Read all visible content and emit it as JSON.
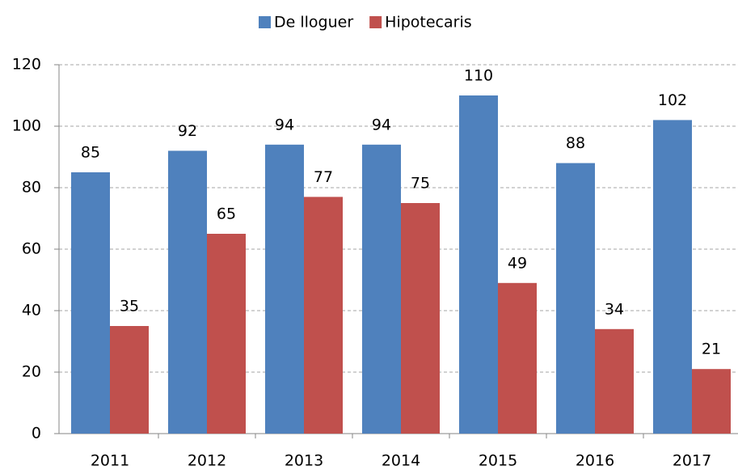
{
  "chart_data": {
    "type": "bar",
    "categories": [
      "2011",
      "2012",
      "2013",
      "2014",
      "2015",
      "2016",
      "2017"
    ],
    "series": [
      {
        "name": "De lloguer",
        "color": "#4f81bd",
        "values": [
          85,
          92,
          94,
          94,
          110,
          88,
          102
        ]
      },
      {
        "name": "Hipotecaris",
        "color": "#c0504d",
        "values": [
          35,
          65,
          77,
          75,
          49,
          34,
          21
        ]
      }
    ],
    "ylim": [
      0,
      120
    ],
    "yticks": [
      0,
      20,
      40,
      60,
      80,
      100,
      120
    ],
    "grid": true,
    "legend": "top"
  }
}
